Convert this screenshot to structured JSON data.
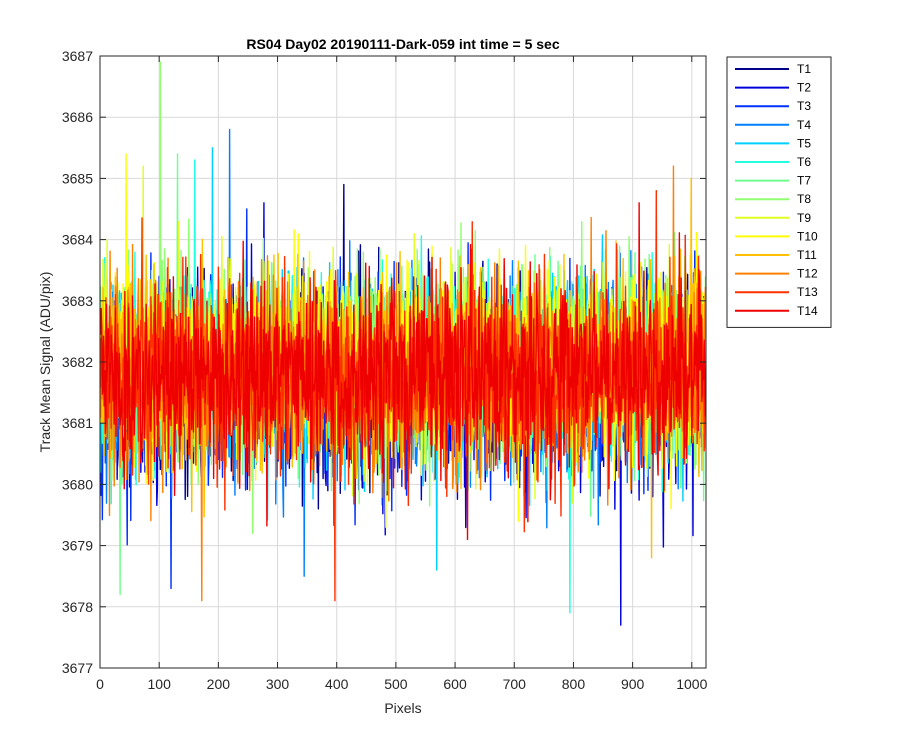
{
  "chart_data": {
    "type": "line",
    "title": "RS04 Day02 20190111-Dark-059 int time = 5 sec",
    "xlabel": "Pixels",
    "ylabel": "Track Mean Signal (ADU/pix)",
    "xlim": [
      0,
      1024
    ],
    "ylim": [
      3677,
      3687
    ],
    "x_ticks": [
      0,
      100,
      200,
      300,
      400,
      500,
      600,
      700,
      800,
      900,
      1000
    ],
    "y_ticks": [
      3677,
      3678,
      3679,
      3680,
      3681,
      3682,
      3683,
      3684,
      3685,
      3686,
      3687
    ],
    "x_tick_labels": [
      "0",
      "100",
      "200",
      "300",
      "400",
      "500",
      "600",
      "700",
      "800",
      "900",
      "1000"
    ],
    "y_tick_labels": [
      "3677",
      "3678",
      "3679",
      "3680",
      "3681",
      "3682",
      "3683",
      "3684",
      "3685",
      "3686",
      "3687"
    ],
    "grid": true,
    "legend_position": "outside-top-right",
    "series": [
      {
        "name": "T1",
        "color": "#00008f",
        "mean": 3681.7,
        "peak_max": 3684.9,
        "peak_min": 3679.6
      },
      {
        "name": "T2",
        "color": "#0000df",
        "mean": 3681.6,
        "peak_max": 3684.6,
        "peak_min": 3677.7
      },
      {
        "name": "T3",
        "color": "#0030ff",
        "mean": 3681.6,
        "peak_max": 3684.5,
        "peak_min": 3678.3
      },
      {
        "name": "T4",
        "color": "#0080ff",
        "mean": 3681.8,
        "peak_max": 3685.8,
        "peak_min": 3678.5
      },
      {
        "name": "T5",
        "color": "#00cfff",
        "mean": 3681.8,
        "peak_max": 3685.5,
        "peak_min": 3678.6
      },
      {
        "name": "T6",
        "color": "#20ffdf",
        "mean": 3681.9,
        "peak_max": 3685.3,
        "peak_min": 3677.9
      },
      {
        "name": "T7",
        "color": "#70ff8f",
        "mean": 3681.9,
        "peak_max": 3685.4,
        "peak_min": 3678.2
      },
      {
        "name": "T8",
        "color": "#8fff70",
        "mean": 3682.0,
        "peak_max": 3686.9,
        "peak_min": 3679.2
      },
      {
        "name": "T9",
        "color": "#dfff20",
        "mean": 3682.0,
        "peak_max": 3685.2,
        "peak_min": 3679.3
      },
      {
        "name": "T10",
        "color": "#ffff00",
        "mean": 3682.0,
        "peak_max": 3685.4,
        "peak_min": 3679.4
      },
      {
        "name": "T11",
        "color": "#ffc000",
        "mean": 3681.9,
        "peak_max": 3685.0,
        "peak_min": 3678.8
      },
      {
        "name": "T12",
        "color": "#ff8000",
        "mean": 3681.8,
        "peak_max": 3685.2,
        "peak_min": 3678.1
      },
      {
        "name": "T13",
        "color": "#ff3000",
        "mean": 3681.8,
        "peak_max": 3684.8,
        "peak_min": 3678.1
      },
      {
        "name": "T14",
        "color": "#ef0000",
        "mean": 3681.8,
        "peak_max": 3684.6,
        "peak_min": 3679.1
      }
    ]
  }
}
